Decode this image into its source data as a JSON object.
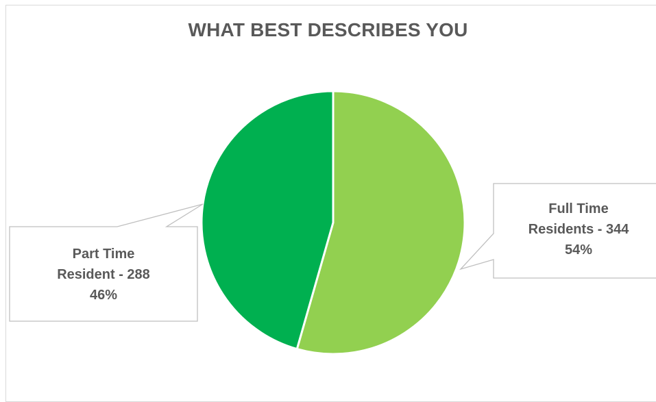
{
  "chart_data": {
    "type": "pie",
    "title": "WHAT BEST DESCRIBES YOU",
    "slices": [
      {
        "category": "Full Time Residents",
        "value": 344,
        "percent": "54%",
        "label_line1": "Full Time",
        "label_line2": "Residents - 344",
        "label_line3": "54%",
        "color": "#92d050"
      },
      {
        "category": "Part Time Resident",
        "value": 288,
        "percent": "46%",
        "label_line1": "Part Time",
        "label_line2": "Resident - 288",
        "label_line3": "46%",
        "color": "#00b050"
      }
    ]
  }
}
